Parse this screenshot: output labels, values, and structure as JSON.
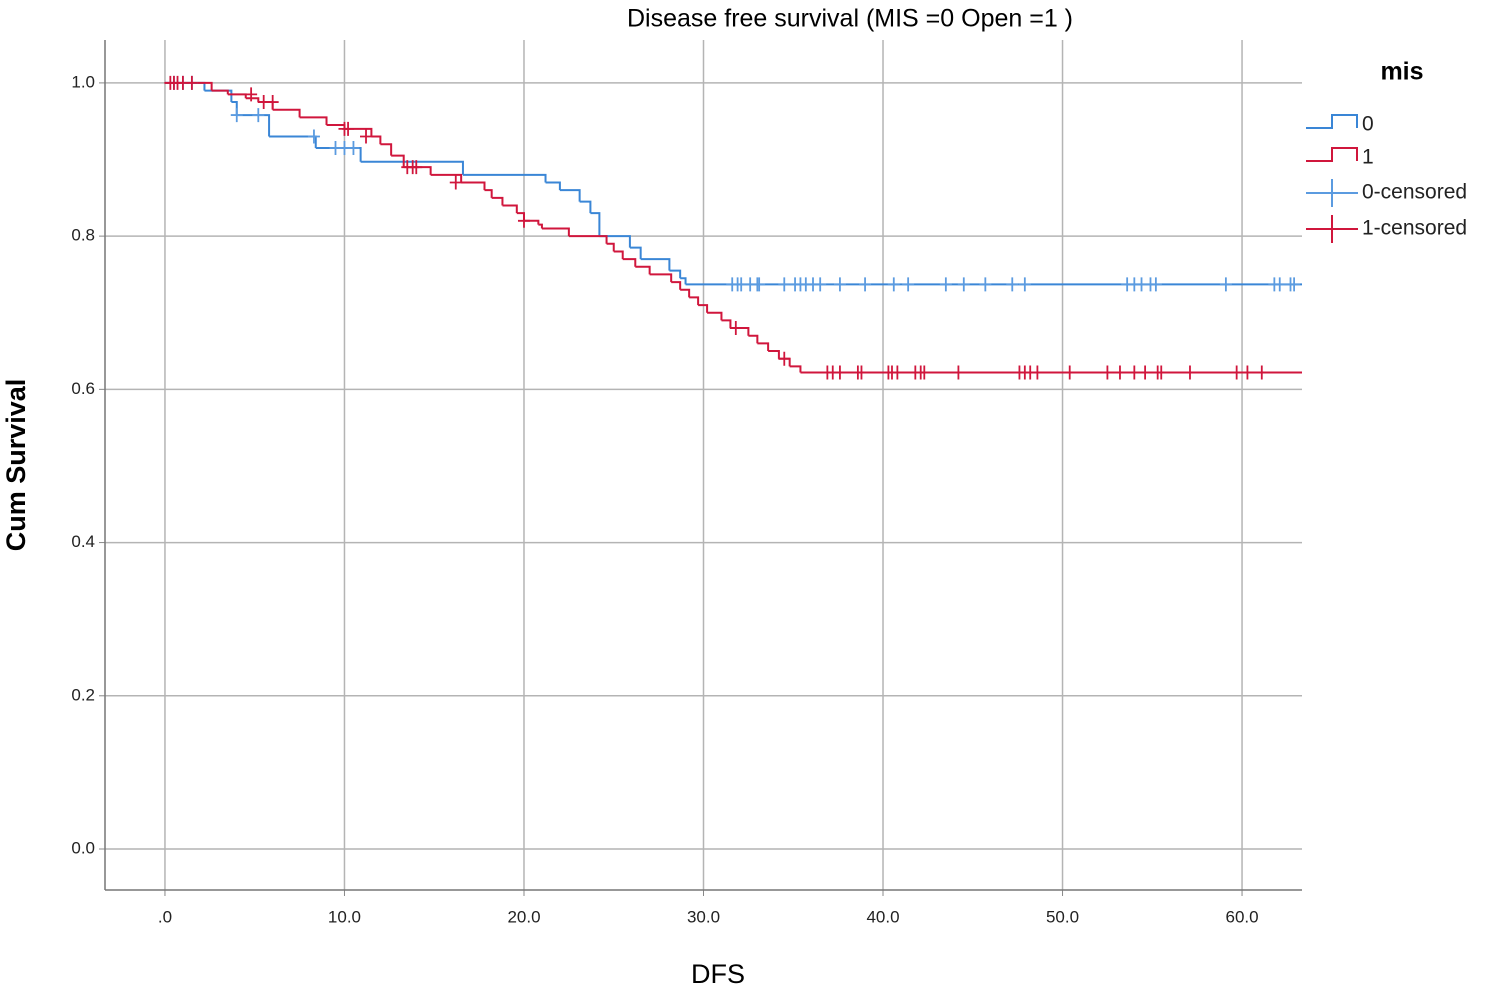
{
  "chart_data": {
    "type": "survival",
    "title": "Disease free survival (MIS =0 Open =1 )",
    "x_label": "DFS",
    "y_label": "Cum Survival",
    "legend_title": "mis",
    "legend_position": "right",
    "grid": true,
    "xlim": [
      -3.34,
      63.34
    ],
    "ylim": [
      -0.0535,
      1.056
    ],
    "xticks": [
      {
        "value": 0,
        "label": ".0"
      },
      {
        "value": 10,
        "label": "10.0"
      },
      {
        "value": 20,
        "label": "20.0"
      },
      {
        "value": 30,
        "label": "30.0"
      },
      {
        "value": 40,
        "label": "40.0"
      },
      {
        "value": 50,
        "label": "50.0"
      },
      {
        "value": 60,
        "label": "60.0"
      }
    ],
    "yticks": [
      {
        "value": 0,
        "label": "0.0"
      },
      0.2,
      0.4,
      0.6,
      0.8,
      {
        "value": 1,
        "label": "1.0"
      }
    ],
    "series": [
      {
        "name": "0",
        "kind": "step",
        "color": "#3a86d6",
        "x": [
          0,
          2.2,
          3.7,
          4.0,
          5.8,
          8.4,
          10.9,
          16.6,
          21.2,
          22.0,
          23.1,
          23.7,
          24.2,
          25.9,
          26.5,
          28.1,
          28.7,
          29.0
        ],
        "values": [
          1.0,
          0.99,
          0.975,
          0.958,
          0.93,
          0.915,
          0.897,
          0.88,
          0.87,
          0.86,
          0.845,
          0.83,
          0.8,
          0.785,
          0.77,
          0.755,
          0.745,
          0.737
        ]
      },
      {
        "name": "1",
        "kind": "step",
        "color": "#d0163c",
        "x": [
          0,
          2.6,
          3.5,
          4.5,
          5.2,
          6.0,
          7.5,
          9.0,
          10.0,
          11.5,
          12.0,
          12.6,
          13.3,
          14.8,
          16.5,
          17.8,
          18.2,
          18.8,
          19.6,
          20.0,
          20.8,
          21.0,
          22.5,
          24.6,
          25.0,
          25.5,
          26.2,
          27.0,
          28.2,
          28.7,
          29.2,
          29.7,
          30.2,
          31.0,
          31.5,
          32.5,
          33.0,
          33.6,
          34.2,
          34.8,
          35.4
        ],
        "values": [
          1.0,
          0.99,
          0.985,
          0.98,
          0.975,
          0.965,
          0.955,
          0.945,
          0.94,
          0.93,
          0.92,
          0.905,
          0.89,
          0.88,
          0.87,
          0.86,
          0.85,
          0.84,
          0.83,
          0.82,
          0.815,
          0.81,
          0.8,
          0.79,
          0.78,
          0.77,
          0.76,
          0.75,
          0.74,
          0.73,
          0.72,
          0.71,
          0.7,
          0.69,
          0.68,
          0.67,
          0.66,
          0.65,
          0.64,
          0.63,
          0.622
        ]
      },
      {
        "name": "0-censored",
        "kind": "censored",
        "color": "#5b9be0",
        "x": [
          0.5,
          1.0,
          1.5,
          4.0,
          5.2,
          8.3,
          9.5,
          10.0,
          10.5,
          31.6,
          31.9,
          32.1,
          32.6,
          33.0,
          33.1,
          34.5,
          35.1,
          35.4,
          35.7,
          36.1,
          36.5,
          37.6,
          39.0,
          40.6,
          41.4,
          43.5,
          44.5,
          45.7,
          47.2,
          47.9,
          53.6,
          54.0,
          54.4,
          54.9,
          55.2,
          59.1,
          61.8,
          62.1,
          62.7,
          62.9
        ],
        "values": [
          1.0,
          1.0,
          1.0,
          0.958,
          0.958,
          0.93,
          0.915,
          0.915,
          0.915,
          0.737,
          0.737,
          0.737,
          0.737,
          0.737,
          0.737,
          0.737,
          0.737,
          0.737,
          0.737,
          0.737,
          0.737,
          0.737,
          0.737,
          0.737,
          0.737,
          0.737,
          0.737,
          0.737,
          0.737,
          0.737,
          0.737,
          0.737,
          0.737,
          0.737,
          0.737,
          0.737,
          0.737,
          0.737,
          0.737,
          0.737
        ]
      },
      {
        "name": "1-censored",
        "kind": "censored",
        "color": "#d0163c",
        "x": [
          0.3,
          0.5,
          0.7,
          1.0,
          1.5,
          4.8,
          5.5,
          6.0,
          10.0,
          10.2,
          11.2,
          13.5,
          13.8,
          14.0,
          16.2,
          20.0,
          31.8,
          34.5,
          36.9,
          37.2,
          37.6,
          38.6,
          38.8,
          40.3,
          40.5,
          40.8,
          41.8,
          42.1,
          42.3,
          44.2,
          47.6,
          47.9,
          48.2,
          48.6,
          50.4,
          52.5,
          53.2,
          54.0,
          54.6,
          55.3,
          55.5,
          57.1,
          59.7,
          60.3,
          61.1
        ],
        "values": [
          1.0,
          1.0,
          1.0,
          1.0,
          1.0,
          0.985,
          0.975,
          0.975,
          0.94,
          0.94,
          0.93,
          0.89,
          0.89,
          0.89,
          0.87,
          0.82,
          0.68,
          0.64,
          0.622,
          0.622,
          0.622,
          0.622,
          0.622,
          0.622,
          0.622,
          0.622,
          0.622,
          0.622,
          0.622,
          0.622,
          0.622,
          0.622,
          0.622,
          0.622,
          0.622,
          0.622,
          0.622,
          0.622,
          0.622,
          0.622,
          0.622,
          0.622,
          0.622,
          0.622,
          0.622
        ]
      }
    ]
  }
}
